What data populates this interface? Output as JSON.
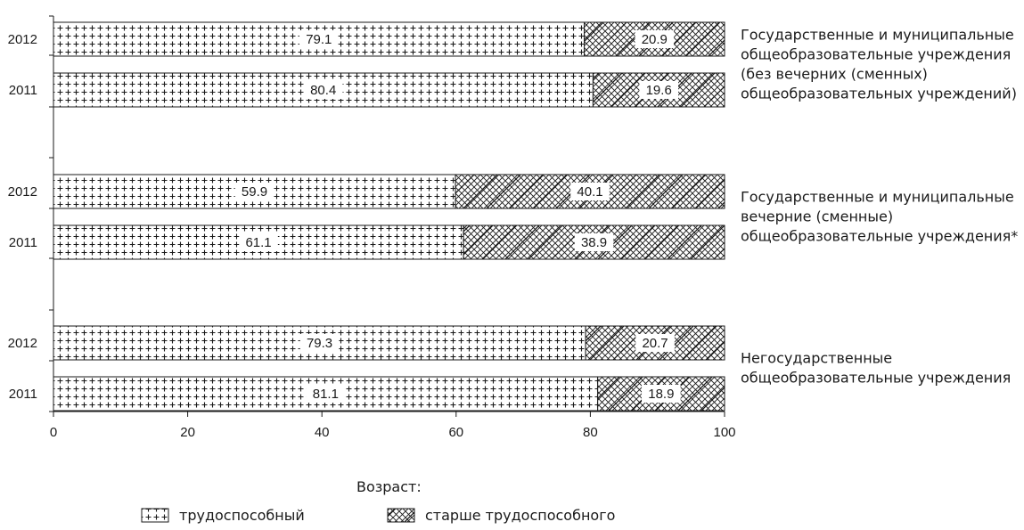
{
  "chart_data": {
    "type": "bar",
    "orientation": "horizontal",
    "stacked": true,
    "xlim": [
      0,
      100
    ],
    "x_ticks": [
      0,
      20,
      40,
      60,
      80,
      100
    ],
    "groups": [
      {
        "label_lines": [
          "Государственные и муниципальные",
          "общеобразовательные учреждения",
          "(без вечерних (сменных)",
          "общеобразовательных учреждений)"
        ],
        "bars": [
          {
            "year": "2012",
            "values": [
              79.1,
              20.9
            ],
            "labels": [
              "79.1",
              "20.9"
            ]
          },
          {
            "year": "2011",
            "values": [
              80.4,
              19.6
            ],
            "labels": [
              "80.4",
              "19.6"
            ]
          }
        ]
      },
      {
        "label_lines": [
          "Государственные и муниципальные",
          "вечерние (сменные)",
          "общеобразовательные учреждения*"
        ],
        "bars": [
          {
            "year": "2012",
            "values": [
              59.9,
              40.1
            ],
            "labels": [
              "59.9",
              "40.1"
            ]
          },
          {
            "year": "2011",
            "values": [
              61.1,
              38.9
            ],
            "labels": [
              "61.1",
              "38.9"
            ]
          }
        ]
      },
      {
        "label_lines": [
          "Негосударственные",
          "общеобразовательные учреждения"
        ],
        "bars": [
          {
            "year": "2012",
            "values": [
              79.3,
              20.7
            ],
            "labels": [
              "79.3",
              "20.7"
            ]
          },
          {
            "year": "2011",
            "values": [
              81.1,
              18.9
            ],
            "labels": [
              "81.1",
              "18.9"
            ]
          }
        ]
      }
    ],
    "legend": {
      "title": "Возраст:",
      "position": "bottom",
      "items": [
        {
          "label": "трудоспособный",
          "pattern": "crosses"
        },
        {
          "label": "старше трудоспособного",
          "pattern": "crosshatch"
        }
      ]
    }
  }
}
